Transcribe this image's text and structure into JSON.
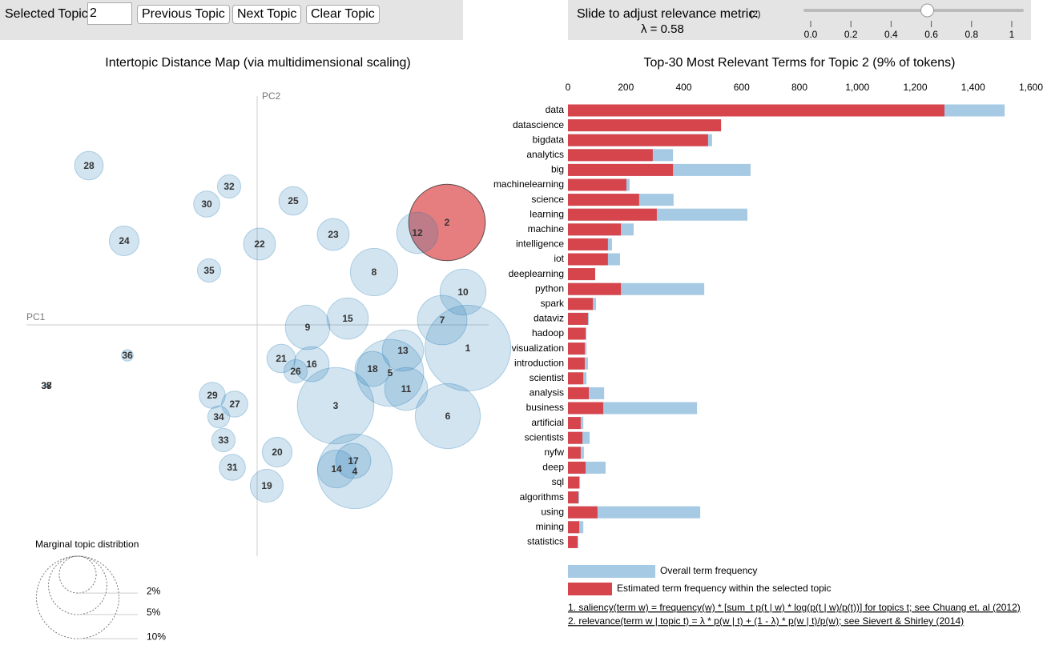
{
  "controls": {
    "selected_topic_label": "Selected Topic:",
    "selected_topic": "2",
    "buttons": [
      "Previous Topic",
      "Next Topic",
      "Clear Topic"
    ]
  },
  "slider": {
    "label": "Slide to adjust relevance metric:",
    "footnote_ref": "(2)",
    "value": 0.58,
    "value_label": "λ = 0.58",
    "lim": [
      0,
      1
    ],
    "ticks": [
      {
        "value": 0,
        "label": "0.0"
      },
      0.2,
      0.4,
      0.6,
      0.8,
      1
    ]
  },
  "chart_data": [
    {
      "type": "scatter",
      "title": "Intertopic Distance Map (via multidimensional scaling)",
      "x_label": "PC1",
      "y_label": "PC2",
      "categories": [
        "1",
        "2",
        "3",
        "4",
        "5",
        "6",
        "7",
        "8",
        "9",
        "10",
        "11",
        "12",
        "13",
        "14",
        "15",
        "16",
        "17",
        "18",
        "19",
        "20",
        "21",
        "22",
        "23",
        "24",
        "25",
        "26",
        "27",
        "28",
        "29",
        "30",
        "31",
        "32",
        "33",
        "34",
        "35",
        "36",
        "37",
        "38"
      ],
      "x": [
        0.263,
        0.237,
        0.098,
        0.122,
        0.166,
        0.238,
        0.231,
        0.146,
        0.063,
        0.257,
        0.186,
        0.2,
        0.182,
        0.099,
        0.113,
        0.068,
        0.12,
        0.144,
        0.012,
        0.025,
        0.03,
        0.003,
        0.095,
        -0.166,
        0.045,
        0.048,
        -0.028,
        -0.21,
        -0.056,
        -0.063,
        -0.031,
        -0.035,
        -0.042,
        -0.048,
        -0.06,
        -0.162,
        -0.263,
        -0.263
      ],
      "y": [
        -0.029,
        0.128,
        -0.101,
        -0.183,
        -0.06,
        -0.114,
        0.006,
        0.066,
        -0.003,
        0.041,
        -0.08,
        0.115,
        -0.032,
        -0.18,
        0.008,
        -0.049,
        -0.17,
        -0.055,
        -0.201,
        -0.159,
        -0.042,
        0.101,
        0.113,
        0.105,
        0.155,
        -0.058,
        -0.099,
        0.199,
        -0.088,
        0.151,
        -0.178,
        0.173,
        -0.144,
        -0.115,
        0.068,
        -0.038,
        -0.076,
        -0.076
      ],
      "size": [
        10.8,
        8.6,
        8.6,
        8.2,
        6.6,
        6.2,
        3.6,
        3.3,
        2.9,
        3.1,
        2.7,
        2.5,
        2.5,
        2.1,
        2.5,
        1.8,
        1.8,
        1.8,
        1.6,
        1.3,
        1.2,
        1.5,
        1.5,
        1.3,
        1.2,
        0.8,
        1.0,
        1.2,
        1.0,
        1.0,
        1.0,
        0.8,
        0.8,
        0.7,
        0.8,
        0.2,
        0.01,
        0.01
      ],
      "colors": [
        "#1f77b4",
        "#d62728",
        "#1f77b4",
        "#1f77b4",
        "#1f77b4",
        "#1f77b4",
        "#1f77b4",
        "#1f77b4",
        "#1f77b4",
        "#1f77b4",
        "#1f77b4",
        "#1f77b4",
        "#1f77b4",
        "#1f77b4",
        "#1f77b4",
        "#1f77b4",
        "#1f77b4",
        "#1f77b4",
        "#1f77b4",
        "#1f77b4",
        "#1f77b4",
        "#1f77b4",
        "#1f77b4",
        "#1f77b4",
        "#1f77b4",
        "#1f77b4",
        "#1f77b4",
        "#1f77b4",
        "#1f77b4",
        "#1f77b4",
        "#1f77b4",
        "#1f77b4",
        "#1f77b4",
        "#1f77b4",
        "#1f77b4",
        "#1f77b4",
        "#1f77b4",
        "#1f77b4"
      ],
      "xlim": [
        -0.29,
        0.29
      ],
      "ylim": [
        -0.29,
        0.29
      ],
      "size_legend": {
        "title": "Marginal topic distribtion",
        "ticks": [
          {
            "value": 2,
            "label": "2%"
          },
          {
            "value": 5,
            "label": "5%"
          },
          {
            "value": 10,
            "label": "10%"
          }
        ]
      }
    },
    {
      "type": "bar",
      "orientation": "horizontal",
      "title": "Top-30 Most Relevant Terms for Topic 2 (9% of tokens)",
      "categories": [
        "data",
        "datascience",
        "bigdata",
        "analytics",
        "big",
        "machinelearning",
        "science",
        "learning",
        "machine",
        "intelligence",
        "iot",
        "deeplearning",
        "python",
        "spark",
        "dataviz",
        "hadoop",
        "visualization",
        "introduction",
        "scientist",
        "analysis",
        "business",
        "artificial",
        "scientists",
        "nyfw",
        "deep",
        "sql",
        "algorithms",
        "using",
        "mining",
        "statistics"
      ],
      "series": [
        {
          "name": "Overall term frequency",
          "color": "#a6cae3",
          "values": [
            1509,
            529,
            498,
            363,
            631,
            213,
            365,
            620,
            227,
            152,
            180,
            94,
            471,
            97,
            72,
            64,
            64,
            69,
            64,
            125,
            446,
            53,
            75,
            55,
            130,
            42,
            39,
            457,
            53,
            36
          ]
        },
        {
          "name": "Estimated term frequency within the selected topic",
          "color": "#d6444c",
          "values": [
            1301,
            529,
            484,
            293,
            363,
            202,
            246,
            307,
            183,
            138,
            138,
            94,
            183,
            86,
            69,
            61,
            58,
            58,
            53,
            72,
            122,
            44,
            50,
            44,
            61,
            39,
            36,
            102,
            39,
            33
          ]
        }
      ],
      "xlim": [
        0,
        1600
      ],
      "xticks": [
        0,
        200,
        400,
        600,
        800,
        {
          "value": 1000,
          "label": "1,000"
        },
        {
          "value": 1200,
          "label": "1,200"
        },
        {
          "value": 1400,
          "label": "1,400"
        },
        {
          "value": 1600,
          "label": "1,600"
        }
      ]
    }
  ],
  "footnotes": [
    "1. saliency(term w) = frequency(w) * [sum_t p(t | w) * log(p(t | w)/p(t))] for topics t; see Chuang et. al (2012)",
    "2. relevance(term w | topic t) = λ * p(w | t) + (1 - λ) * p(w | t)/p(w); see Sievert & Shirley (2014)"
  ]
}
